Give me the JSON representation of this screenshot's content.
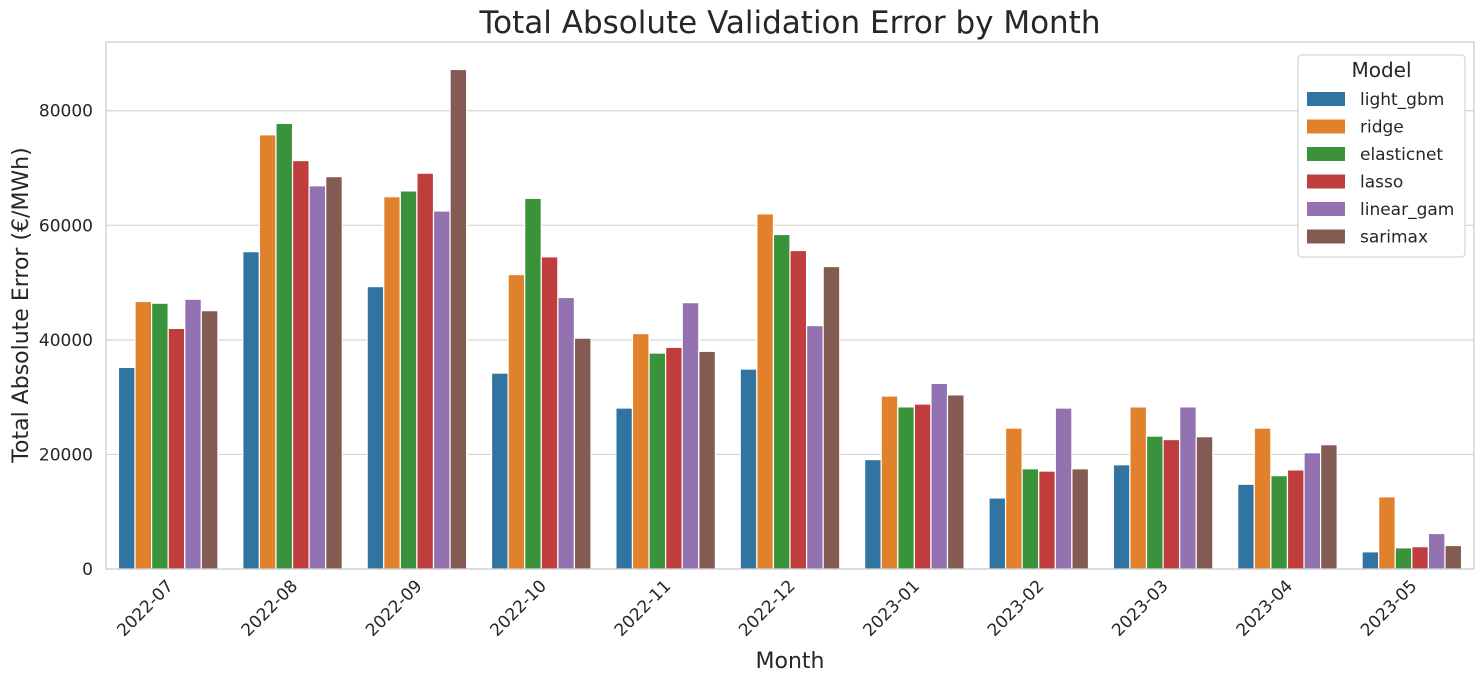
{
  "chart_data": {
    "type": "bar",
    "title": "Total Absolute Validation Error by Month",
    "xlabel": "Month",
    "ylabel": "Total Absolute Error (€/MWh)",
    "ylim": [
      0,
      92000
    ],
    "yticks": [
      0,
      20000,
      40000,
      60000,
      80000
    ],
    "grid": true,
    "legend": {
      "title": "Model",
      "position": "top-right"
    },
    "categories": [
      "2022-07",
      "2022-08",
      "2022-09",
      "2022-10",
      "2022-11",
      "2022-12",
      "2023-01",
      "2023-02",
      "2023-03",
      "2023-04",
      "2023-05"
    ],
    "series": [
      {
        "name": "light_gbm",
        "color": "#3274a1",
        "values": [
          35200,
          55400,
          49300,
          34200,
          28100,
          34900,
          19100,
          12400,
          18200,
          14800,
          3000
        ]
      },
      {
        "name": "ridge",
        "color": "#e1812c",
        "values": [
          46700,
          75800,
          65000,
          51400,
          41100,
          62000,
          30200,
          24600,
          28300,
          24600,
          12600
        ]
      },
      {
        "name": "elasticnet",
        "color": "#3a923a",
        "values": [
          46400,
          77800,
          66000,
          64700,
          37700,
          58400,
          28300,
          17500,
          23200,
          16300,
          3700
        ]
      },
      {
        "name": "lasso",
        "color": "#c03d3e",
        "values": [
          42000,
          71300,
          69100,
          54500,
          38700,
          55600,
          28800,
          17100,
          22600,
          17300,
          3900
        ]
      },
      {
        "name": "linear_gam",
        "color": "#9372b2",
        "values": [
          47100,
          66900,
          62500,
          47400,
          46500,
          42500,
          32400,
          28100,
          28300,
          20300,
          6200
        ]
      },
      {
        "name": "sarimax",
        "color": "#845b53",
        "values": [
          45100,
          68500,
          87200,
          40300,
          38000,
          52800,
          30400,
          17500,
          23100,
          21700,
          4100
        ]
      }
    ]
  }
}
